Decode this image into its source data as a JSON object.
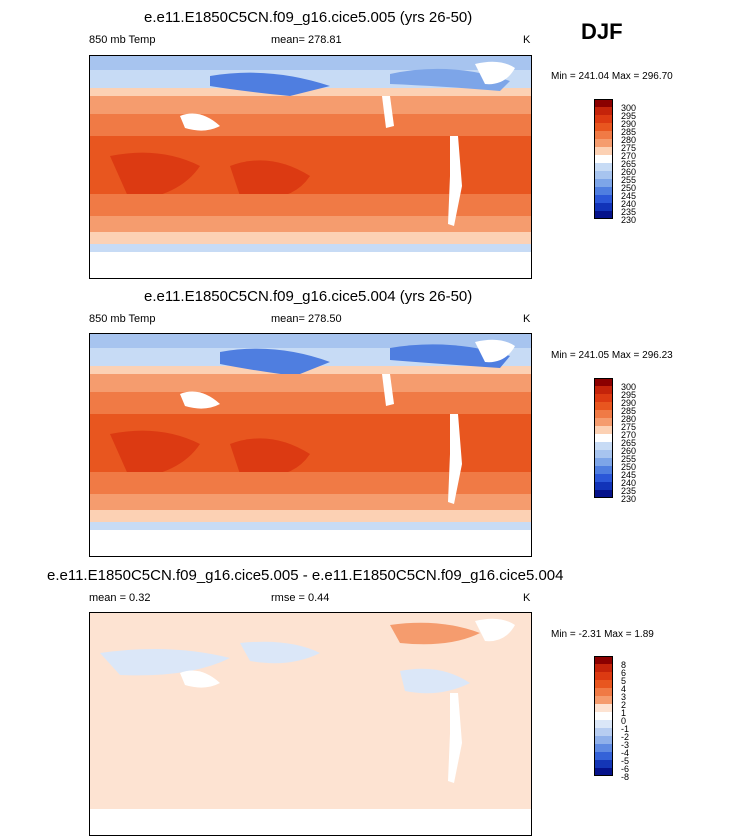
{
  "season": "DJF",
  "chart_data": [
    {
      "type": "heatmap",
      "title": "e.e11.E1850C5CN.f09_g16.cice5.005 (yrs 26-50)",
      "variable": "850 mb Temp",
      "mean_label": "mean= 278.81",
      "units": "K",
      "min": 241.04,
      "max": 296.7,
      "minmax_label": "Min = 241.04 Max = 296.70",
      "colorbar_levels": [
        "300",
        "295",
        "290",
        "285",
        "280",
        "275",
        "270",
        "265",
        "260",
        "255",
        "250",
        "245",
        "240",
        "235",
        "230"
      ],
      "colorbar_colors": [
        "#8b0000",
        "#c4230a",
        "#dc3a12",
        "#e8561f",
        "#f07a45",
        "#f59c6e",
        "#fcd1b4",
        "#ffffff",
        "#c7dbf5",
        "#a7c4ef",
        "#7da5e8",
        "#4f7ee0",
        "#2b57d8",
        "#1133b8",
        "#05128a"
      ]
    },
    {
      "type": "heatmap",
      "title": "e.e11.E1850C5CN.f09_g16.cice5.004 (yrs 26-50)",
      "variable": "850 mb Temp",
      "mean_label": "mean= 278.50",
      "units": "K",
      "min": 241.05,
      "max": 296.23,
      "minmax_label": "Min = 241.05 Max = 296.23",
      "colorbar_levels": [
        "300",
        "295",
        "290",
        "285",
        "280",
        "275",
        "270",
        "265",
        "260",
        "255",
        "250",
        "245",
        "240",
        "235",
        "230"
      ],
      "colorbar_colors": [
        "#8b0000",
        "#c4230a",
        "#dc3a12",
        "#e8561f",
        "#f07a45",
        "#f59c6e",
        "#fcd1b4",
        "#ffffff",
        "#c7dbf5",
        "#a7c4ef",
        "#7da5e8",
        "#4f7ee0",
        "#2b57d8",
        "#1133b8",
        "#05128a"
      ]
    },
    {
      "type": "heatmap",
      "title": "e.e11.E1850C5CN.f09_g16.cice5.005 - e.e11.E1850C5CN.f09_g16.cice5.004",
      "mean_label": "mean =   0.32",
      "rmse_label": "rmse =   0.44",
      "units": "K",
      "min": -2.31,
      "max": 1.89,
      "minmax_label": "Min =  -2.31 Max =   1.89",
      "colorbar_levels": [
        "8",
        "6",
        "5",
        "4",
        "3",
        "2",
        "1",
        "0",
        "-1",
        "-2",
        "-3",
        "-4",
        "-5",
        "-6",
        "-8"
      ],
      "colorbar_colors": [
        "#8b0000",
        "#c4230a",
        "#dc3a12",
        "#e8561f",
        "#f07a45",
        "#f59c6e",
        "#fde3d2",
        "#ffffff",
        "#dbe7f8",
        "#b7cdf1",
        "#8fb0ea",
        "#5f8ae2",
        "#3462d8",
        "#1436b6",
        "#05128a"
      ]
    }
  ]
}
